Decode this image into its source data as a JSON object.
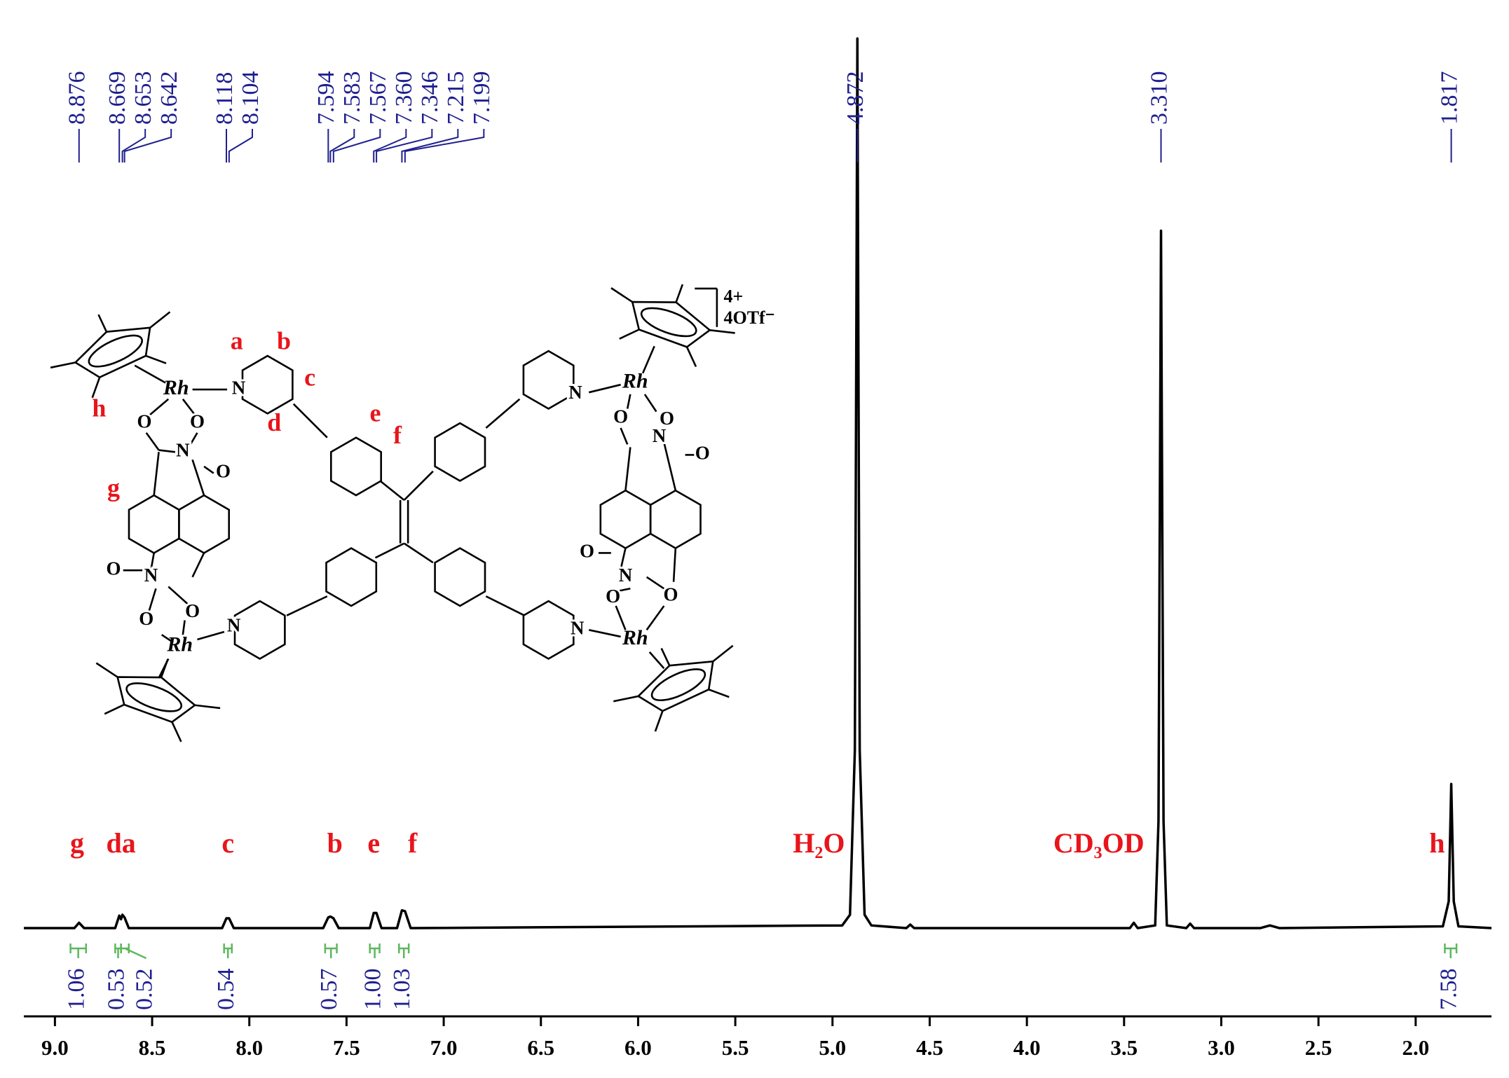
{
  "chart_data": {
    "type": "nmr",
    "x": [
      9.16,
      8.9,
      8.876,
      8.85,
      8.69,
      8.669,
      8.66,
      8.653,
      8.642,
      8.62,
      8.14,
      8.118,
      8.104,
      8.08,
      7.62,
      7.594,
      7.583,
      7.567,
      7.54,
      7.38,
      7.36,
      7.346,
      7.32,
      7.24,
      7.215,
      7.199,
      7.17,
      4.95,
      4.91,
      4.885,
      4.872,
      4.86,
      4.835,
      4.8,
      4.62,
      4.6,
      4.58,
      3.47,
      3.45,
      3.43,
      3.34,
      3.323,
      3.31,
      3.297,
      3.28,
      3.18,
      3.16,
      3.14,
      2.8,
      2.75,
      2.7,
      1.86,
      1.83,
      1.817,
      1.804,
      1.78,
      1.61
    ],
    "values": [
      0,
      0,
      0.6,
      0,
      0,
      1.4,
      1.0,
      1.5,
      1.2,
      0,
      0,
      1.1,
      1.1,
      0,
      0,
      1.2,
      1.3,
      1.1,
      0,
      0,
      1.7,
      1.7,
      0,
      0,
      2.0,
      1.9,
      0,
      0.3,
      1.5,
      20,
      100,
      20,
      1.5,
      0.3,
      0,
      0.4,
      0,
      0,
      0.6,
      0,
      0.3,
      12,
      78.4,
      12,
      0.3,
      0,
      0.5,
      0,
      0,
      0.3,
      0,
      0.2,
      3,
      16.2,
      3,
      0.2,
      0
    ],
    "color": "#000000",
    "xlim": [
      9.16,
      1.61
    ],
    "ylim": [
      0,
      100
    ],
    "xticks": [
      {
        "value": 9,
        "label": "9.0"
      },
      8.5,
      {
        "value": 8,
        "label": "8.0"
      },
      7.5,
      {
        "value": 7,
        "label": "7.0"
      },
      6.5,
      {
        "value": 6,
        "label": "6.0"
      },
      5.5,
      {
        "value": 5,
        "label": "5.0"
      },
      4.5,
      {
        "value": 4,
        "label": "4.0"
      },
      3.5,
      {
        "value": 3,
        "label": "3.0"
      },
      2.5,
      {
        "value": 2,
        "label": "2.0"
      }
    ],
    "peak_label_color": "#1f1f8f",
    "peak_labels": [
      {
        "value": 8.876,
        "label": "8.876"
      },
      {
        "value": 8.669,
        "label": "8.669"
      },
      {
        "value": 8.653,
        "label": "8.653"
      },
      {
        "value": 8.642,
        "label": "8.642"
      },
      {
        "value": 8.118,
        "label": "8.118"
      },
      {
        "value": 8.104,
        "label": "8.104"
      },
      {
        "value": 7.594,
        "label": "7.594"
      },
      {
        "value": 7.583,
        "label": "7.583"
      },
      {
        "value": 7.567,
        "label": "7.567"
      },
      {
        "value": 7.36,
        "label": "7.360"
      },
      {
        "value": 7.346,
        "label": "7.346"
      },
      {
        "value": 7.215,
        "label": "7.215"
      },
      {
        "value": 7.199,
        "label": "7.199"
      },
      {
        "value": 4.872,
        "label": "4.872"
      },
      {
        "value": 3.31,
        "label": "3.310"
      },
      {
        "value": 1.817,
        "label": "1.817"
      }
    ],
    "integral_color": "#5cb85c",
    "integrals": [
      {
        "range": [
          8.92,
          8.84
        ],
        "value": 1.06,
        "label": "1.06"
      },
      {
        "range": [
          8.69,
          8.66
        ],
        "value": 0.53,
        "label": "0.53"
      },
      {
        "range": [
          8.66,
          8.62
        ],
        "value": 0.52,
        "label": "0.52"
      },
      {
        "range": [
          8.13,
          8.09
        ],
        "value": 0.54,
        "label": "0.54"
      },
      {
        "range": [
          7.61,
          7.55
        ],
        "value": 0.57,
        "label": "0.57"
      },
      {
        "range": [
          7.38,
          7.33
        ],
        "value": 1.0,
        "label": "1.00"
      },
      {
        "range": [
          7.23,
          7.18
        ],
        "value": 1.03,
        "label": "1.03"
      },
      {
        "range": [
          1.85,
          1.79
        ],
        "value": 7.58,
        "label": "7.58"
      }
    ],
    "annotation_color": "#e8151b",
    "annotations": [
      {
        "text": "g",
        "x": 8.886
      },
      {
        "text": "da",
        "x": 8.66
      },
      {
        "text": "c",
        "x": 8.11
      },
      {
        "text": "b",
        "x": 7.56
      },
      {
        "text": "e",
        "x": 7.36
      },
      {
        "text": "f",
        "x": 7.16
      },
      {
        "text": "H₂O",
        "x": 5.07
      },
      {
        "text": "CD₃OD",
        "x": 3.63
      },
      {
        "text": "h",
        "x": 1.89
      }
    ],
    "structure": {
      "labels": [
        "a",
        "b",
        "c",
        "d",
        "e",
        "f",
        "g",
        "h",
        "Rh",
        "Rh",
        "Rh",
        "Rh",
        "N",
        "N",
        "N",
        "N",
        "N",
        "N",
        "N",
        "N",
        "O",
        "O",
        "O",
        "O",
        "O",
        "O",
        "O",
        "O",
        "O",
        "O",
        "O",
        "O"
      ],
      "charge": "4+",
      "counterion": "4OTf⁻"
    }
  }
}
